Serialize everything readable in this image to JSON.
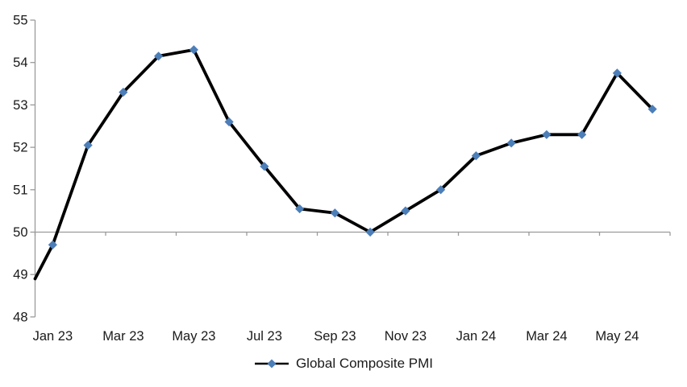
{
  "chart_data": {
    "type": "line",
    "title": "",
    "categories": [
      "Jan 23",
      "Feb 23",
      "Mar 23",
      "Apr 23",
      "May 23",
      "Jun 23",
      "Jul 23",
      "Aug 23",
      "Sep 23",
      "Oct 23",
      "Nov 23",
      "Dec 23",
      "Jan 24",
      "Feb 24",
      "Mar 24",
      "Apr 24",
      "May 24",
      "Jun 24"
    ],
    "series": [
      {
        "name": "Global Composite PMI",
        "values": [
          49.7,
          52.05,
          53.3,
          54.15,
          54.3,
          52.6,
          51.55,
          50.55,
          50.45,
          50.0,
          50.5,
          51.0,
          51.8,
          52.1,
          52.3,
          52.3,
          53.75,
          52.9
        ],
        "lead_in_edge_value": 48.9,
        "marker": "diamond",
        "marker_color": "#4C7EB8",
        "line_color": "#000000"
      }
    ],
    "x_tick_labels": [
      "Jan 23",
      "Mar 23",
      "May 23",
      "Jul 23",
      "Sep 23",
      "Nov 23",
      "Jan 24",
      "Mar 24",
      "May 24"
    ],
    "x_label_interval": 2,
    "y_ticks": [
      48,
      49,
      50,
      51,
      52,
      53,
      54,
      55
    ],
    "ylim": [
      48,
      55
    ],
    "x_axis_cross_value": 50,
    "grid": "off",
    "legend": {
      "label": "Global Composite PMI",
      "position": "bottom-center"
    },
    "colors": {
      "axis": "#9A9A9A",
      "tick_text": "#1A1A1A",
      "background": "#FFFFFF"
    }
  }
}
